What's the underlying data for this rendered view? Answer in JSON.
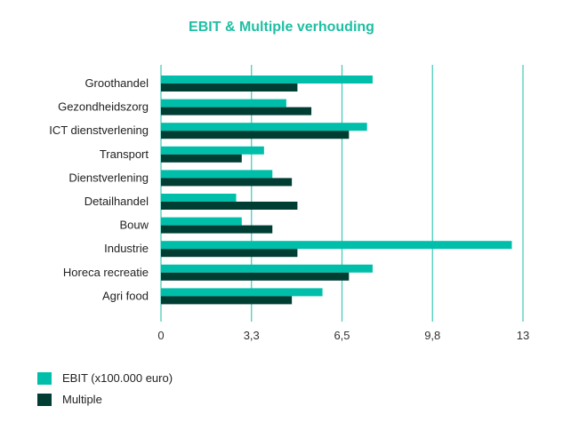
{
  "chart_data": {
    "type": "bar",
    "orientation": "horizontal",
    "title": "EBIT & Multiple verhouding",
    "categories": [
      "Groothandel",
      "Gezondheidszorg",
      "ICT dienstverlening",
      "Transport",
      "Dienstverlening",
      "Detailhandel",
      "Bouw",
      "Industrie",
      "Horeca recreatie",
      "Agri food"
    ],
    "series": [
      {
        "name": "EBIT (x100.000 euro)",
        "color": "#00bfaa",
        "values": [
          7.6,
          4.5,
          7.4,
          3.7,
          4.0,
          2.7,
          2.9,
          12.6,
          7.6,
          5.8
        ]
      },
      {
        "name": "Multiple",
        "color": "#003d33",
        "values": [
          4.9,
          5.4,
          6.75,
          2.9,
          4.7,
          4.9,
          4.0,
          4.9,
          6.75,
          4.7
        ]
      }
    ],
    "xlim": [
      0,
      13
    ],
    "xticks": [
      "0",
      "3,3",
      "6,5",
      "9,8",
      "13"
    ],
    "xtick_values": [
      0,
      3.25,
      6.5,
      9.75,
      13
    ],
    "grid": true,
    "gridline_color": "#3cc9b5",
    "legend_position": "bottom-left"
  }
}
